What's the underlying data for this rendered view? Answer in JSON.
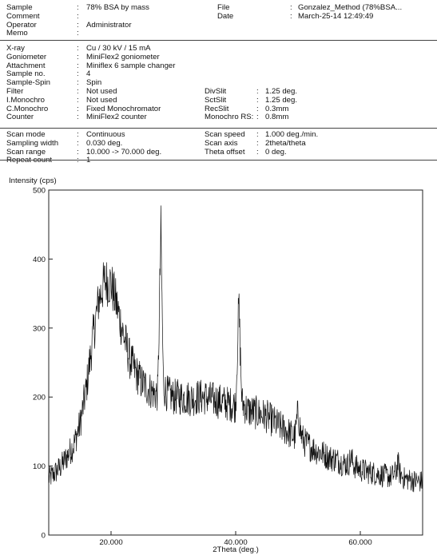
{
  "header": {
    "sections": [
      {
        "rows": [
          {
            "left": {
              "label": "Sample",
              "value": "78% BSA by mass"
            },
            "right": {
              "label": "File",
              "value": "Gonzalez_Method (78%BSA..."
            }
          },
          {
            "left": {
              "label": "Comment",
              "value": ""
            },
            "right": {
              "label": "Date",
              "value": "March-25-14 12:49:49"
            }
          },
          {
            "left": {
              "label": "Operator",
              "value": "Administrator"
            }
          },
          {
            "left": {
              "label": "Memo",
              "value": ""
            }
          }
        ]
      },
      {
        "rows": [
          {
            "left": {
              "label": "X-ray",
              "value": "Cu / 30 kV / 15 mA"
            }
          },
          {
            "left": {
              "label": "Goniometer",
              "value": "MiniFlex2 goniometer"
            }
          },
          {
            "left": {
              "label": "Attachment",
              "value": "Miniflex 6 sample changer"
            }
          },
          {
            "left": {
              "label": "Sample no.",
              "value": "4"
            }
          },
          {
            "left": {
              "label": "Sample-Spin",
              "value": "Spin"
            }
          },
          {
            "left": {
              "label": "Filter",
              "value": "Not used"
            },
            "mid": {
              "label": "DivSlit",
              "value": "1.25 deg."
            }
          },
          {
            "left": {
              "label": "I.Monochro",
              "value": "Not used"
            },
            "mid": {
              "label": "SctSlit",
              "value": "1.25 deg."
            }
          },
          {
            "left": {
              "label": "C.Monochro",
              "value": "Fixed Monochromator"
            },
            "mid": {
              "label": "RecSlit",
              "value": "0.3mm"
            }
          },
          {
            "left": {
              "label": "Counter",
              "value": "MiniFlex2 counter"
            },
            "mid": {
              "label": "Monochro RS:",
              "value": "0.8mm"
            }
          }
        ]
      },
      {
        "rows": [
          {
            "left": {
              "label": "Scan mode",
              "value": "Continuous"
            },
            "mid": {
              "label": "Scan speed",
              "value": "1.000 deg./min."
            }
          },
          {
            "left": {
              "label": "Sampling width",
              "value": "0.030 deg."
            },
            "mid": {
              "label": "Scan axis",
              "value": "2theta/theta"
            }
          },
          {
            "left": {
              "label": "Scan range",
              "value": "10.000 -> 70.000 deg."
            },
            "mid": {
              "label": "Theta offset",
              "value": "0 deg."
            }
          },
          {
            "left": {
              "label": "Repeat count",
              "value": "1"
            }
          }
        ]
      }
    ]
  },
  "chart_data": {
    "type": "line",
    "title": "",
    "ylabel": "Intensity (cps)",
    "xlabel": "2Theta (deg.)",
    "xlim": [
      10,
      70
    ],
    "ylim": [
      0,
      500
    ],
    "xticks": [
      20,
      40,
      60
    ],
    "xtick_labels": [
      "20.000",
      "40.000",
      "60.000"
    ],
    "yticks": [
      0,
      100,
      200,
      300,
      400,
      500
    ],
    "ytick_labels": [
      "0",
      "100",
      "200",
      "300",
      "400",
      "500"
    ],
    "line_color": "#111111",
    "series": [
      {
        "x": [
          10,
          11,
          12,
          13,
          14,
          15,
          16,
          17,
          18,
          19,
          20,
          21,
          22,
          23,
          24,
          25,
          26,
          27,
          27.5,
          28,
          28.4,
          29,
          30,
          31,
          32,
          33,
          34,
          35,
          36,
          37,
          38,
          39,
          40,
          40.5,
          41,
          42,
          43,
          44,
          45,
          46,
          47,
          48,
          49,
          49.5,
          50,
          50.5,
          51,
          52,
          53,
          54,
          55,
          56,
          57,
          58,
          58.5,
          59,
          60,
          61,
          62,
          63,
          64,
          65,
          65.8,
          66,
          66.3,
          67,
          68,
          69,
          70
        ],
        "y": [
          82,
          90,
          100,
          115,
          130,
          160,
          210,
          280,
          340,
          368,
          365,
          330,
          290,
          255,
          235,
          220,
          212,
          205,
          205,
          440,
          215,
          205,
          200,
          200,
          199,
          198,
          200,
          200,
          197,
          195,
          192,
          190,
          188,
          335,
          192,
          180,
          178,
          175,
          172,
          165,
          158,
          152,
          145,
          142,
          178,
          145,
          135,
          128,
          122,
          118,
          112,
          110,
          105,
          102,
          112,
          100,
          95,
          92,
          90,
          88,
          86,
          84,
          92,
          108,
          90,
          82,
          80,
          78,
          77
        ]
      }
    ]
  }
}
